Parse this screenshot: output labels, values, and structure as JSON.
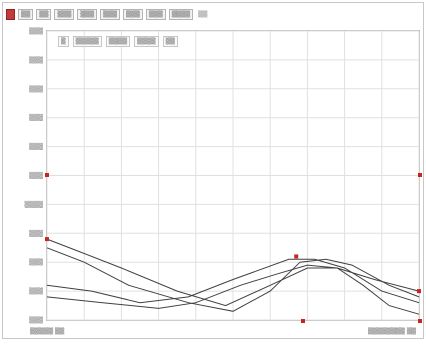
{
  "toolbar": {
    "items": [
      "▮",
      "▒▒",
      "▒▒",
      "▒▒▒",
      "▒▒▒",
      "▒▒▒",
      "▒▒▒",
      "▒▒▒",
      "▒▒▒▒"
    ],
    "status": "▒▒"
  },
  "legend": {
    "items": [
      "▒",
      "▒▒▒▒▒",
      "▒▒▒▒",
      "▒▒▒▒",
      "▒▒"
    ]
  },
  "footer": {
    "left": "▒▒▒▒▒ ▒▒",
    "right": "▒▒▒▒▒▒▒▒ ▒▒"
  },
  "colors": {
    "border": "#c8c8c8",
    "grid": "#e0e0e0",
    "series": "#404040",
    "marker": "#cc2222"
  },
  "chart_data": {
    "type": "line",
    "grid": true,
    "x_ticks": 11,
    "ylim": [
      0,
      100
    ],
    "xlim": [
      0,
      100
    ],
    "ytick_labels": [
      "▒▒▒",
      "▒▒▒",
      "▒▒▒",
      "▒▒▒",
      "▒▒▒▒",
      "▒▒▒",
      "▒▒▒",
      "▒▒▒",
      "▒▒▒",
      "▒▒▒",
      "▒▒▒"
    ],
    "series": [
      {
        "x": [
          0,
          8,
          20,
          35,
          48,
          60,
          70,
          78,
          85,
          92,
          100
        ],
        "y": [
          28,
          24,
          18,
          10,
          5,
          12,
          18,
          18,
          12,
          5,
          2
        ]
      },
      {
        "x": [
          0,
          10,
          22,
          38,
          50,
          60,
          68,
          75,
          82,
          92,
          100
        ],
        "y": [
          25,
          20,
          12,
          6,
          3,
          10,
          20,
          21,
          19,
          12,
          8
        ]
      },
      {
        "x": [
          0,
          12,
          25,
          38,
          50,
          65,
          72,
          80,
          90,
          100
        ],
        "y": [
          12,
          10,
          6,
          8,
          14,
          21,
          21,
          18,
          10,
          6
        ]
      },
      {
        "x": [
          0,
          15,
          30,
          40,
          52,
          62,
          70,
          78,
          88,
          100
        ],
        "y": [
          8,
          6,
          4,
          6,
          12,
          16,
          19,
          18,
          14,
          10
        ]
      }
    ],
    "markers": [
      {
        "x": 0,
        "y": 28
      },
      {
        "x": 67,
        "y": 22
      },
      {
        "x": 100,
        "y": 10
      }
    ]
  }
}
